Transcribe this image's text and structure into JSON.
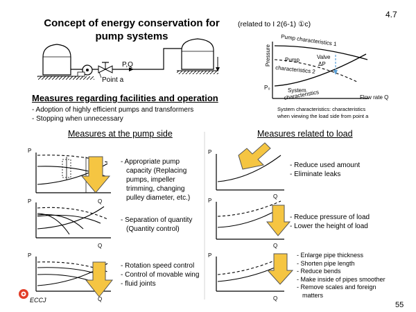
{
  "slide": {
    "number": "4.7",
    "page": "55",
    "title": "Concept of energy conservation for pump systems",
    "reference": "(related to I 2(6-1) ①c)",
    "logo": "ECCJ"
  },
  "system_diagram": {
    "label_pq": "P,Q",
    "label_point": "Point a"
  },
  "characteristic_chart": {
    "ylabel": "Pressure",
    "xlabel": "Flow rate  Q",
    "p0": "P₀",
    "pump_char_1": "Pump characteristics 1",
    "pump_label": "Pump",
    "pump_char_2": "characteristics 2",
    "valve_label": "Valve",
    "delta_p": "ΔP",
    "system_label": "System",
    "system_label2": "characteristics",
    "note_line1": "System characteristics: characteristics",
    "note_line2": "when viewing the load side from point a"
  },
  "facilities": {
    "heading": "Measures regarding facilities and operation",
    "items": [
      "- Adoption of highly efficient pumps and transformers",
      "- Stopping when unnecessary"
    ]
  },
  "pump_side": {
    "heading": "Measures at the pump side",
    "blocks": [
      {
        "lines": [
          "- Appropriate pump",
          "capacity (Replacing",
          "pumps, impeller",
          "trimming, changing",
          "pulley diameter, etc.)"
        ]
      },
      {
        "lines": [
          "- Separation of quantity",
          "(Quantity control)"
        ]
      },
      {
        "lines": [
          "- Rotation speed control",
          "- Control of movable wing",
          "- fluid joints"
        ]
      }
    ]
  },
  "load_side": {
    "heading": "Measures related to load",
    "blocks": [
      {
        "lines": [
          "- Reduce used amount",
          "- Eliminate leaks"
        ]
      },
      {
        "lines": [
          "- Reduce pressure of load",
          "- Lower the height of load"
        ]
      },
      {
        "lines": [
          "- Enlarge pipe thickness",
          "- Shorten pipe length",
          "- Reduce bends",
          "- Make inside of pipes smoother",
          "- Remove scales and foreign",
          "matters"
        ]
      }
    ]
  },
  "axis_labels": {
    "p": "P",
    "q": "Q"
  },
  "colors": {
    "arrow_fill": "#f5c542",
    "arrow_stroke": "#555555",
    "dashed_blue": "#5aa0d8"
  }
}
